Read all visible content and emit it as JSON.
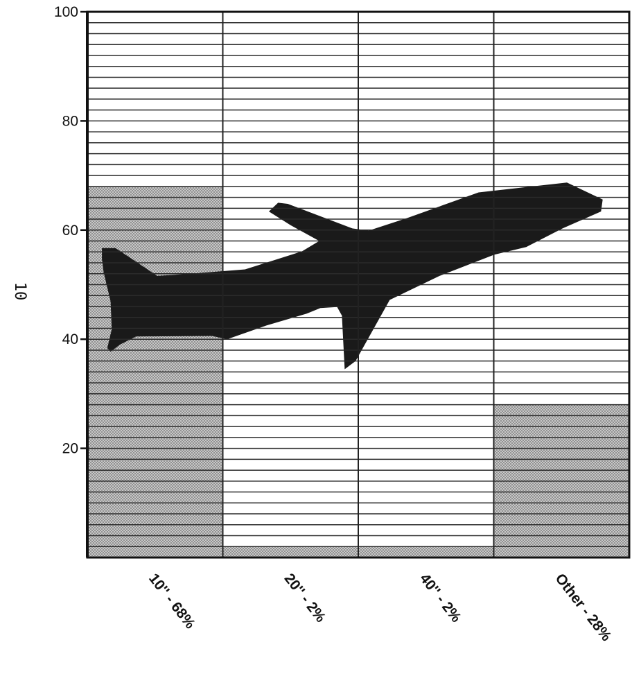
{
  "page": {
    "side_number": "10"
  },
  "chart_data": {
    "type": "bar",
    "categories": [
      "10'' - 68%",
      "20'' - 2%",
      "40'' - 2%",
      "Other - 28%"
    ],
    "values": [
      68,
      2,
      2,
      28
    ],
    "ylim": [
      0,
      100
    ],
    "yticks": [
      20,
      40,
      60,
      80,
      100
    ],
    "title": "",
    "xlabel": "",
    "ylabel": "",
    "grid": true,
    "bar_fill": "#b8b8b8",
    "ink": "#111111",
    "decoration": "airplane-silhouette"
  }
}
